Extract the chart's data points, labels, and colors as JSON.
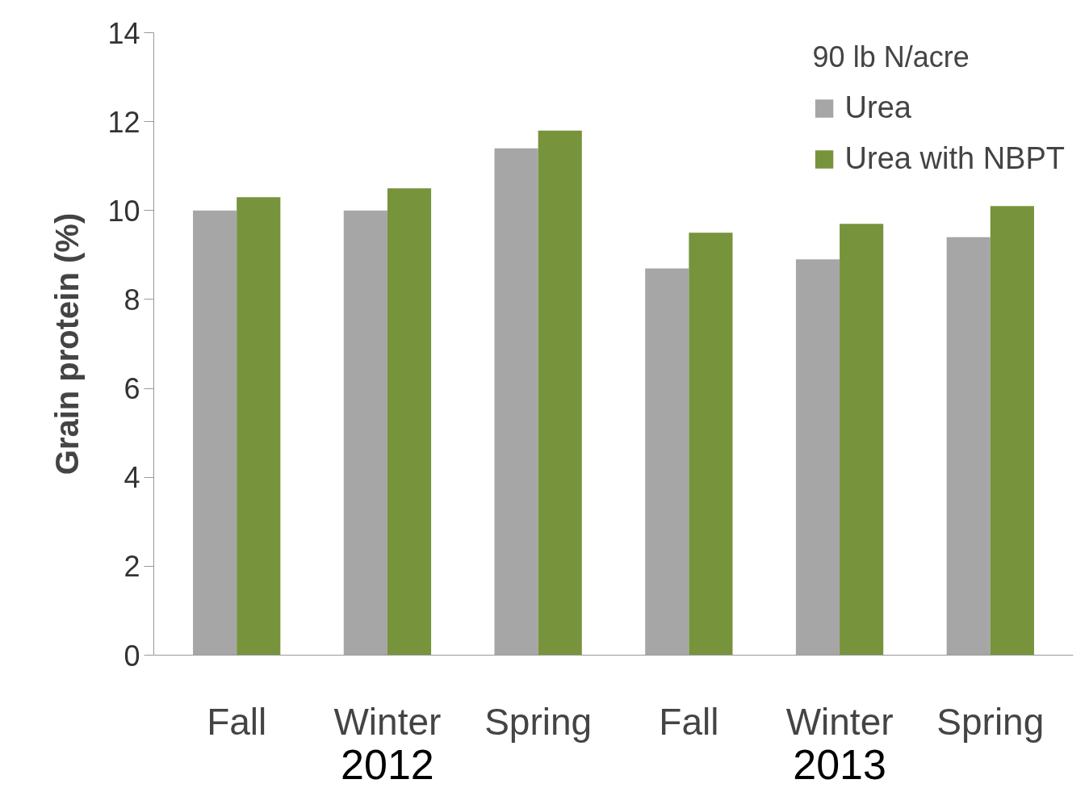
{
  "chart_data": {
    "type": "bar",
    "ylabel": "Grain protein (%)",
    "legend_title": "90 lb N/acre",
    "categories": [
      "Fall",
      "Winter",
      "Spring",
      "Fall",
      "Winter",
      "Spring"
    ],
    "series": [
      {
        "name": "Urea",
        "color": "#a6a6a6",
        "values": [
          10.0,
          10.0,
          11.4,
          8.7,
          8.9,
          9.4
        ]
      },
      {
        "name": "Urea with NBPT",
        "color": "#77933c",
        "values": [
          10.3,
          10.5,
          11.8,
          9.5,
          9.7,
          10.1
        ]
      }
    ],
    "annotations": [
      "2012",
      "2013"
    ],
    "ylim": [
      0,
      14
    ],
    "yticks": [
      0,
      2,
      4,
      6,
      8,
      10,
      12,
      14
    ],
    "grid": false,
    "legend": "top right"
  }
}
